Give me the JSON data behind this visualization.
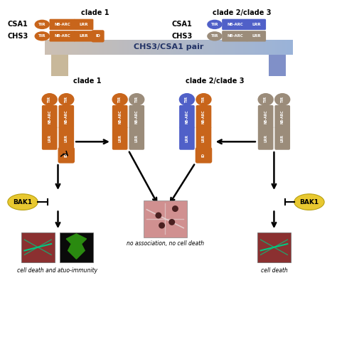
{
  "orange_color": "#C8651B",
  "blue_color": "#5060C8",
  "gray_color": "#9B8C7A",
  "light_blue_bg": "#B8C8E0",
  "gold_color": "#E8C830",
  "title": "CHS3/CSA1 pair",
  "bottom_left_text": "cell death and atuo-immunity",
  "bottom_mid_text": "no association, no cell death",
  "bottom_right_text": "cell death",
  "fig_w": 4.74,
  "fig_h": 4.74,
  "dpi": 100
}
